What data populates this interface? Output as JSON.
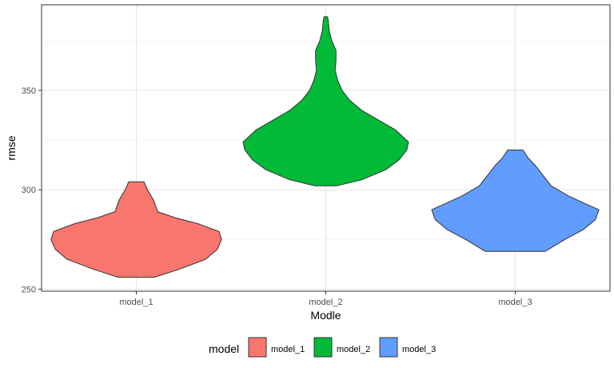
{
  "chart_data": {
    "type": "violin",
    "xlabel": "Modle",
    "ylabel": "rmse",
    "categories": [
      "model_1",
      "model_2",
      "model_3"
    ],
    "ylim": [
      249,
      393
    ],
    "yticks": [
      250,
      300,
      350
    ],
    "grid": true,
    "legend": {
      "title": "model",
      "position": "bottom",
      "entries": [
        "model_1",
        "model_2",
        "model_3"
      ]
    },
    "series": [
      {
        "name": "model_1",
        "color": "#F8766D",
        "profile": [
          [
            256,
            0.21
          ],
          [
            260,
            0.5
          ],
          [
            265,
            0.81
          ],
          [
            270,
            0.95
          ],
          [
            275,
            1.0
          ],
          [
            279,
            0.97
          ],
          [
            283,
            0.72
          ],
          [
            286,
            0.45
          ],
          [
            289,
            0.25
          ],
          [
            295,
            0.2
          ],
          [
            300,
            0.13
          ],
          [
            304,
            0.09
          ]
        ]
      },
      {
        "name": "model_2",
        "color": "#00BA38",
        "profile": [
          [
            302,
            0.13
          ],
          [
            305,
            0.42
          ],
          [
            310,
            0.7
          ],
          [
            315,
            0.86
          ],
          [
            320,
            0.95
          ],
          [
            324,
            0.97
          ],
          [
            330,
            0.82
          ],
          [
            335,
            0.62
          ],
          [
            340,
            0.42
          ],
          [
            345,
            0.28
          ],
          [
            350,
            0.19
          ],
          [
            355,
            0.14
          ],
          [
            360,
            0.11
          ],
          [
            365,
            0.12
          ],
          [
            370,
            0.12
          ],
          [
            375,
            0.07
          ],
          [
            380,
            0.04
          ],
          [
            385,
            0.03
          ],
          [
            387,
            0.02
          ]
        ]
      },
      {
        "name": "model_3",
        "color": "#619CFF",
        "profile": [
          [
            269,
            0.35
          ],
          [
            275,
            0.58
          ],
          [
            280,
            0.8
          ],
          [
            285,
            0.94
          ],
          [
            290,
            0.98
          ],
          [
            293,
            0.82
          ],
          [
            297,
            0.62
          ],
          [
            302,
            0.42
          ],
          [
            307,
            0.33
          ],
          [
            312,
            0.24
          ],
          [
            316,
            0.15
          ],
          [
            320,
            0.09
          ]
        ]
      }
    ]
  }
}
